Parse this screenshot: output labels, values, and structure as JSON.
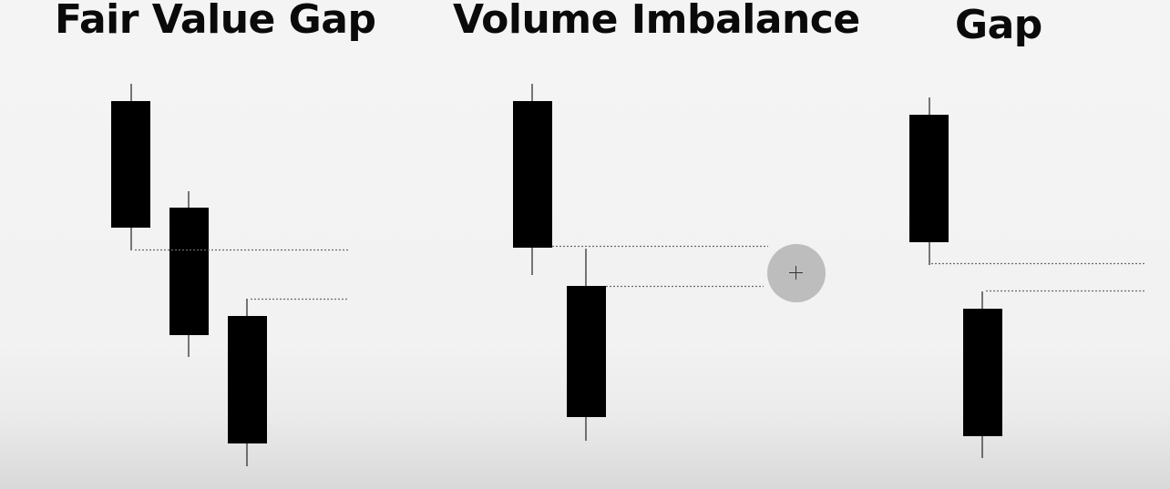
{
  "panels": [
    {
      "title": "Fair Value Gap"
    },
    {
      "title": "Volume Imbalance"
    },
    {
      "title": "Gap"
    }
  ],
  "colors": {
    "candle": "#000000",
    "wick": "#222222",
    "dotted_line": "#6a6a6a",
    "cursor_indicator": "#bdbdbd"
  },
  "icons": {
    "cursor": "crosshair-icon"
  }
}
